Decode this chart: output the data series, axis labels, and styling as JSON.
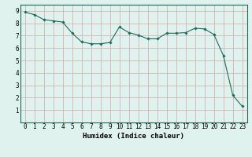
{
  "x": [
    0,
    1,
    2,
    3,
    4,
    5,
    6,
    7,
    8,
    9,
    10,
    11,
    12,
    13,
    14,
    15,
    16,
    17,
    18,
    19,
    20,
    21,
    22,
    23
  ],
  "y": [
    8.9,
    8.7,
    8.3,
    8.2,
    8.1,
    7.2,
    6.5,
    6.35,
    6.35,
    6.45,
    7.7,
    7.25,
    7.05,
    6.75,
    6.75,
    7.2,
    7.2,
    7.25,
    7.6,
    7.55,
    7.1,
    5.4,
    2.2,
    1.3
  ],
  "line_color": "#1a6b5a",
  "marker": "D",
  "marker_size": 1.8,
  "bg_color": "#dff2ee",
  "grid_color": "#d4a8a8",
  "xlabel": "Humidex (Indice chaleur)",
  "xlim": [
    -0.5,
    23.5
  ],
  "ylim": [
    0,
    9.5
  ],
  "xticks": [
    0,
    1,
    2,
    3,
    4,
    5,
    6,
    7,
    8,
    9,
    10,
    11,
    12,
    13,
    14,
    15,
    16,
    17,
    18,
    19,
    20,
    21,
    22,
    23
  ],
  "yticks": [
    1,
    2,
    3,
    4,
    5,
    6,
    7,
    8,
    9
  ],
  "xlabel_fontsize": 6.5,
  "tick_fontsize": 5.5
}
